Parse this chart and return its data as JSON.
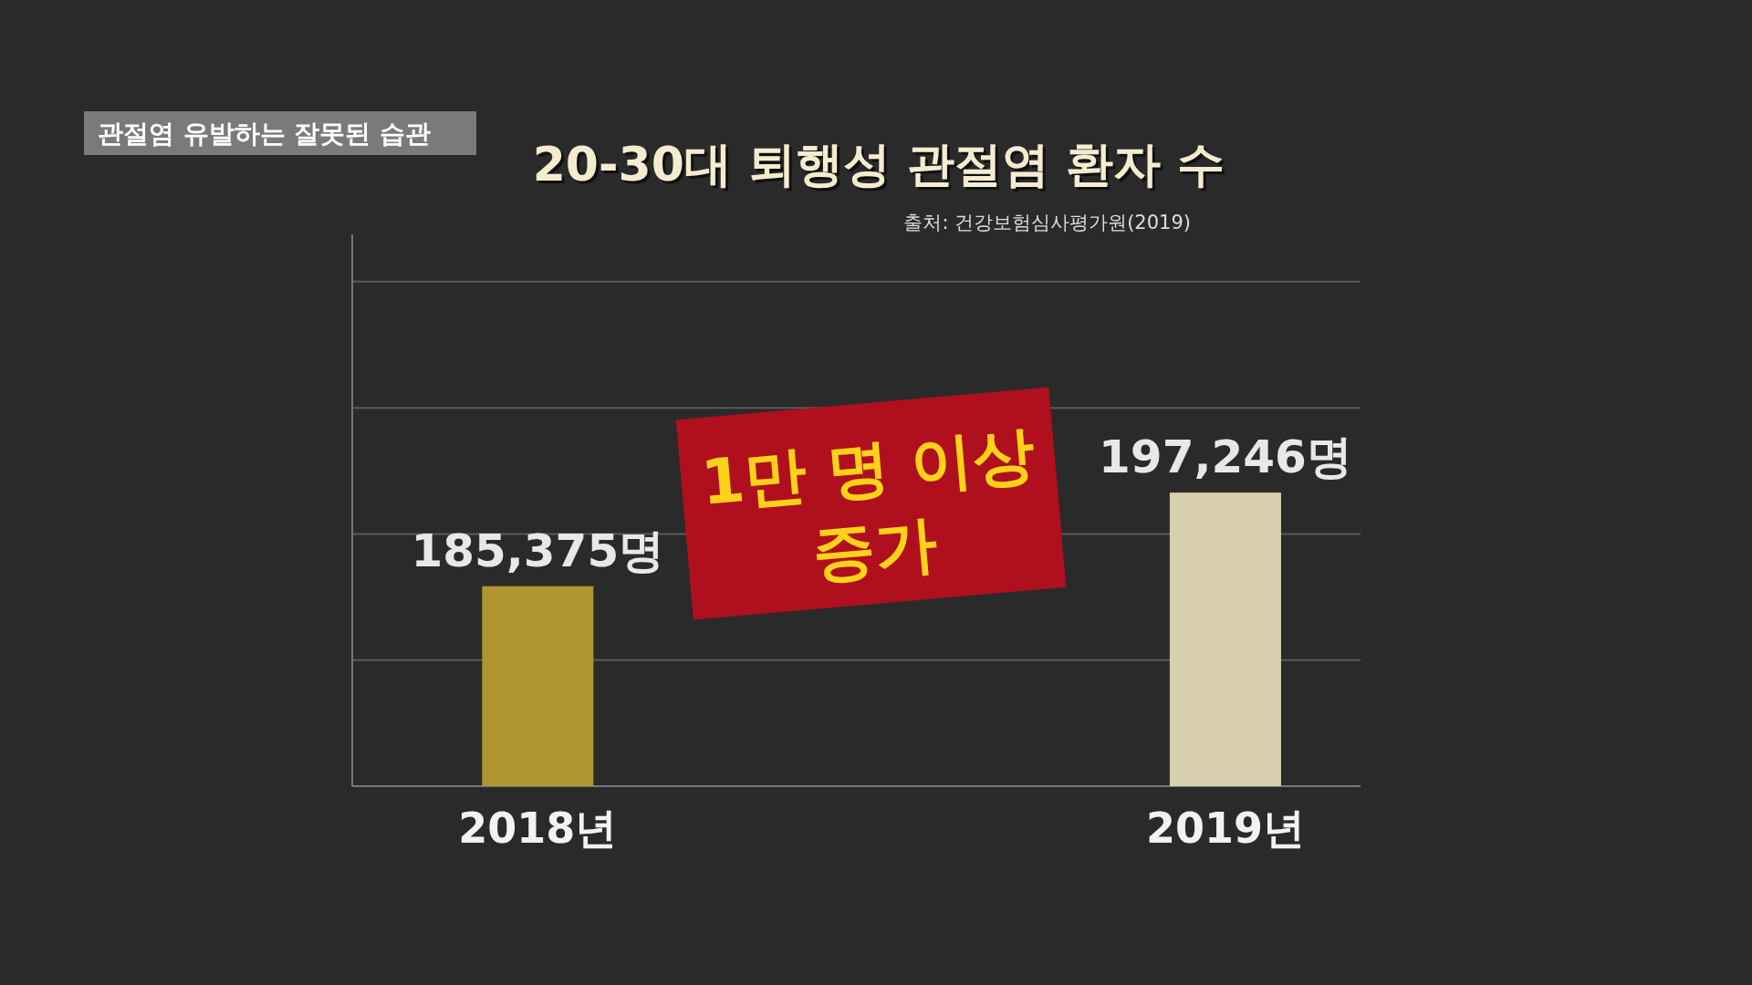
{
  "chart_data": {
    "type": "bar",
    "title": "20-30대 퇴행성 관절염 환자 수",
    "categories": [
      "2018년",
      "2019년"
    ],
    "values": [
      185375,
      197246
    ],
    "value_labels": [
      "185,375명",
      "197,246명"
    ],
    "colors": [
      "#b09530",
      "#d8cfae"
    ],
    "ylim": [
      160000,
      230000
    ],
    "yticks": [
      {
        "value": 160000,
        "label": null
      },
      {
        "value": 176000,
        "label": null
      },
      {
        "value": 192000,
        "label": null
      },
      {
        "value": 208000,
        "label": null
      },
      {
        "value": 224000,
        "label": null
      }
    ],
    "tick_labels": "x",
    "grid": "y",
    "annotations": [
      "출처: 건강보험심사평가원(2019)",
      "1만 명 이상 증가",
      "관절염 유발하는 잘못된 습관"
    ]
  }
}
